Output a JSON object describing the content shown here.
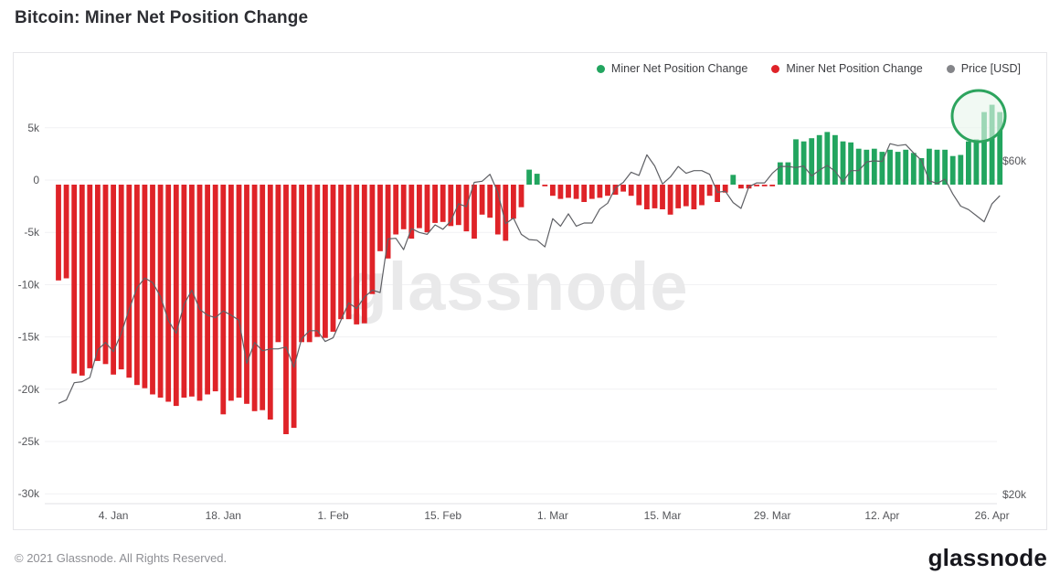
{
  "page": {
    "title": "Bitcoin: Miner Net Position Change"
  },
  "legend": [
    {
      "label": "Miner Net Position Change",
      "color": "#22a55f"
    },
    {
      "label": "Miner Net Position Change",
      "color": "#df2328"
    },
    {
      "label": "Price [USD]",
      "color": "#848589"
    }
  ],
  "watermark": "glassnode",
  "footer": {
    "copyright": "© 2021 Glassnode. All Rights Reserved.",
    "brand": "glassnode"
  },
  "axes": {
    "left": {
      "tick_labels": [
        "5k",
        "0",
        "-5k",
        "-10k",
        "-15k",
        "-20k",
        "-25k",
        "-30k"
      ],
      "tick_values": [
        5000,
        0,
        -5000,
        -10000,
        -15000,
        -20000,
        -25000,
        -30000
      ]
    },
    "right": {
      "scale": "log",
      "tick_labels": [
        "$60k",
        "$20k"
      ],
      "tick_values": [
        60000,
        20000
      ]
    },
    "x": {
      "tick_labels": [
        "4. Jan",
        "18. Jan",
        "1. Feb",
        "15. Feb",
        "1. Mar",
        "15. Mar",
        "29. Mar",
        "12. Apr",
        "26. Apr"
      ],
      "tick_indices": [
        7,
        21,
        35,
        49,
        63,
        77,
        91,
        105,
        119
      ]
    }
  },
  "chart_data": {
    "type": "bar",
    "subtype": "bar+line combo, dual axis",
    "title": "Bitcoin: Miner Net Position Change",
    "grid": "horizontal only",
    "legend_position": "top-right",
    "left_axis_range": [
      -30000,
      7500
    ],
    "right_axis": {
      "scale": "log",
      "ticks_usd": [
        60000,
        20000
      ]
    },
    "x": [
      "Dec 28",
      "Dec 29",
      "Dec 30",
      "Dec 31",
      "Jan 1",
      "Jan 2",
      "Jan 3",
      "Jan 4",
      "Jan 5",
      "Jan 6",
      "Jan 7",
      "Jan 8",
      "Jan 9",
      "Jan 10",
      "Jan 11",
      "Jan 12",
      "Jan 13",
      "Jan 14",
      "Jan 15",
      "Jan 16",
      "Jan 17",
      "Jan 18",
      "Jan 19",
      "Jan 20",
      "Jan 21",
      "Jan 22",
      "Jan 23",
      "Jan 24",
      "Jan 25",
      "Jan 26",
      "Jan 27",
      "Jan 28",
      "Jan 29",
      "Jan 30",
      "Jan 31",
      "Feb 1",
      "Feb 2",
      "Feb 3",
      "Feb 4",
      "Feb 5",
      "Feb 6",
      "Feb 7",
      "Feb 8",
      "Feb 9",
      "Feb 10",
      "Feb 11",
      "Feb 12",
      "Feb 13",
      "Feb 14",
      "Feb 15",
      "Feb 16",
      "Feb 17",
      "Feb 18",
      "Feb 19",
      "Feb 20",
      "Feb 21",
      "Feb 22",
      "Feb 23",
      "Feb 24",
      "Feb 25",
      "Feb 26",
      "Feb 27",
      "Feb 28",
      "Mar 1",
      "Mar 2",
      "Mar 3",
      "Mar 4",
      "Mar 5",
      "Mar 6",
      "Mar 7",
      "Mar 8",
      "Mar 9",
      "Mar 10",
      "Mar 11",
      "Mar 12",
      "Mar 13",
      "Mar 14",
      "Mar 15",
      "Mar 16",
      "Mar 17",
      "Mar 18",
      "Mar 19",
      "Mar 20",
      "Mar 21",
      "Mar 22",
      "Mar 23",
      "Mar 24",
      "Mar 25",
      "Mar 26",
      "Mar 27",
      "Mar 28",
      "Mar 29",
      "Mar 30",
      "Mar 31",
      "Apr 1",
      "Apr 2",
      "Apr 3",
      "Apr 4",
      "Apr 5",
      "Apr 6",
      "Apr 7",
      "Apr 8",
      "Apr 9",
      "Apr 10",
      "Apr 11",
      "Apr 12",
      "Apr 13",
      "Apr 14",
      "Apr 15",
      "Apr 16",
      "Apr 17",
      "Apr 18",
      "Apr 19",
      "Apr 20",
      "Apr 21",
      "Apr 22",
      "Apr 23",
      "Apr 24",
      "Apr 25",
      "Apr 26",
      "Apr 27"
    ],
    "series": [
      {
        "name": "Miner Net Position Change",
        "type": "bar",
        "axis": "left",
        "unit": "BTC",
        "positive_color": "#22a55f",
        "negative_color": "#df2328",
        "values": [
          -9600,
          -9400,
          -18500,
          -18700,
          -18000,
          -17300,
          -17600,
          -18600,
          -18100,
          -18900,
          -19600,
          -19900,
          -20500,
          -20800,
          -21200,
          -21600,
          -20800,
          -20700,
          -21100,
          -20500,
          -20200,
          -22400,
          -21100,
          -20800,
          -21400,
          -22100,
          -22000,
          -22900,
          -15500,
          -24300,
          -23700,
          -15500,
          -15500,
          -15000,
          -15100,
          -14500,
          -13300,
          -13300,
          -13800,
          -13700,
          -10900,
          -6800,
          -7500,
          -5200,
          -4700,
          -5600,
          -4600,
          -5000,
          -4100,
          -4000,
          -4400,
          -4300,
          -4900,
          -5600,
          -3300,
          -3600,
          -5200,
          -5800,
          -3700,
          -2600,
          1000,
          600,
          -300,
          -1500,
          -1800,
          -1700,
          -1800,
          -2100,
          -1800,
          -1700,
          -1500,
          -1400,
          -1100,
          -1500,
          -2400,
          -2800,
          -2700,
          -2800,
          -3300,
          -2700,
          -2500,
          -2800,
          -2400,
          -1500,
          -2100,
          -1200,
          500,
          -800,
          -800,
          -400,
          -400,
          -300,
          1700,
          1700,
          3900,
          3700,
          4000,
          4300,
          4600,
          4300,
          3700,
          3600,
          3000,
          2900,
          3000,
          2700,
          2900,
          2700,
          2900,
          2600,
          2100,
          3000,
          2900,
          2900,
          2300,
          2400,
          3700,
          3900,
          6500,
          7200,
          6500
        ]
      },
      {
        "name": "Price [USD]",
        "type": "line",
        "axis": "right",
        "unit": "USD",
        "color": "#5f6065",
        "values": [
          27000,
          27300,
          28900,
          29000,
          29400,
          32200,
          33000,
          32000,
          34000,
          36800,
          39500,
          40800,
          40200,
          38400,
          35500,
          34000,
          37400,
          39200,
          36800,
          36100,
          35800,
          36600,
          36100,
          35500,
          30800,
          33000,
          32100,
          32300,
          32300,
          32500,
          30400,
          33400,
          34300,
          34300,
          33100,
          33500,
          35500,
          37600,
          36900,
          38300,
          39200,
          38900,
          46400,
          46500,
          44800,
          48000,
          47400,
          47100,
          48600,
          47900,
          49200,
          52100,
          51600,
          55900,
          56100,
          57400,
          54100,
          48800,
          49700,
          47100,
          46300,
          46200,
          45200,
          49600,
          48400,
          50400,
          48400,
          48900,
          48900,
          51200,
          52200,
          54900,
          55900,
          57800,
          57200,
          61200,
          59000,
          55600,
          56900,
          58900,
          57600,
          58100,
          58100,
          57400,
          54100,
          54300,
          52300,
          51300,
          55100,
          55800,
          55800,
          57600,
          58900,
          58900,
          58700,
          59000,
          57100,
          58200,
          59100,
          58000,
          56000,
          58100,
          58100,
          59800,
          60000,
          59900,
          63500,
          63100,
          63300,
          61600,
          60100,
          56200,
          55700,
          56500,
          53800,
          51700,
          51100,
          50100,
          49100,
          52100,
          53500
        ]
      }
    ],
    "annotation": {
      "type": "circle-highlight",
      "around": "last 3 bars",
      "stroke_color": "#2da45e",
      "fill_color": "#e9f5ec"
    }
  }
}
